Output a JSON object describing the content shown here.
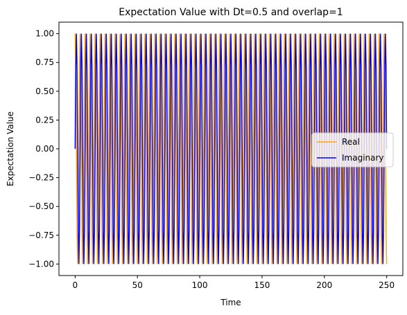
{
  "chart_data": {
    "type": "line",
    "title": "Expectation Value with Dt=0.5 and overlap=1",
    "xlabel": "Time",
    "ylabel": "Expectation Value",
    "xlim": [
      -13,
      263
    ],
    "ylim": [
      -1.1,
      1.1
    ],
    "xticks": [
      0,
      50,
      100,
      150,
      200,
      250
    ],
    "xtick_labels": [
      "0",
      "50",
      "100",
      "150",
      "200",
      "250"
    ],
    "yticks": [
      -1.0,
      -0.75,
      -0.5,
      -0.25,
      0.0,
      0.25,
      0.5,
      0.75,
      1.0
    ],
    "ytick_labels": [
      "−1.00",
      "−0.75",
      "−0.50",
      "−0.25",
      "0.00",
      "0.25",
      "0.50",
      "0.75",
      "1.00"
    ],
    "grid": false,
    "legend_position": "center-right",
    "x": {
      "start": 0,
      "stop": 250,
      "step": 0.5
    },
    "series": [
      {
        "name": "Real",
        "color": "#ffa500",
        "function": "cos",
        "angular_frequency": 1.5708,
        "phase": 0
      },
      {
        "name": "Imaginary",
        "color": "#0000ff",
        "function": "sin",
        "angular_frequency": 1.5708,
        "phase": 0
      }
    ]
  }
}
